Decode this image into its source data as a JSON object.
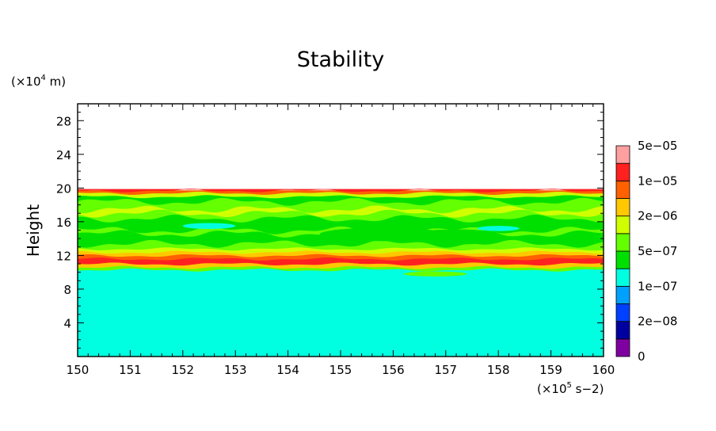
{
  "chart_data": {
    "type": "heatmap",
    "title": "Stability",
    "ylabel": "Height",
    "xlabel": "",
    "y_unit_label": {
      "prefix": "(×10",
      "exp": "4",
      "suffix": " m)"
    },
    "x_unit_label": {
      "prefix": "(×10",
      "exp": "5",
      "suffix": " s−2)"
    },
    "xlim": [
      150,
      160
    ],
    "ylim": [
      0,
      30
    ],
    "xticks": [
      "150",
      "151",
      "152",
      "153",
      "154",
      "155",
      "156",
      "157",
      "158",
      "159",
      "160"
    ],
    "yticks": [
      "4",
      "8",
      "12",
      "16",
      "20",
      "24",
      "28"
    ],
    "colorbar": {
      "colors": [
        "#7f00a0",
        "#0000a0",
        "#0040ff",
        "#00a0ff",
        "#00ffe0",
        "#00e000",
        "#64ff00",
        "#d0ff00",
        "#ffc800",
        "#ff6000",
        "#ff2020",
        "#ffa0a0"
      ],
      "labels": [
        "0",
        "2e−08",
        "1e−07",
        "5e−07",
        "2e−06",
        "1e−05",
        "5e−05"
      ]
    },
    "layers": [
      {
        "y": [
          0,
          9.6
        ],
        "color": "#00ffe0"
      },
      {
        "y": [
          9.6,
          10.3
        ],
        "color": "#00ffe0"
      },
      {
        "y": [
          10.3,
          10.6
        ],
        "color": "#64ff00"
      },
      {
        "y": [
          10.6,
          11.0
        ],
        "color": "#ffc800"
      },
      {
        "y": [
          11.0,
          11.6
        ],
        "color": "#ff2020"
      },
      {
        "y": [
          11.6,
          12.0
        ],
        "color": "#ff6000"
      },
      {
        "y": [
          12.0,
          12.4
        ],
        "color": "#ffc800"
      },
      {
        "y": [
          12.4,
          12.8
        ],
        "color": "#d0ff00"
      },
      {
        "y": [
          12.8,
          13.4
        ],
        "color": "#64ff00"
      },
      {
        "y": [
          13.4,
          14.6
        ],
        "color": "#00e000"
      },
      {
        "y": [
          14.6,
          15.0
        ],
        "color": "#64ff00"
      },
      {
        "y": [
          15.0,
          16.4
        ],
        "color": "#00e000"
      },
      {
        "y": [
          16.4,
          17.0
        ],
        "color": "#64ff00"
      },
      {
        "y": [
          17.0,
          17.5
        ],
        "color": "#d0ff00"
      },
      {
        "y": [
          17.5,
          18.4
        ],
        "color": "#64ff00"
      },
      {
        "y": [
          18.4,
          19.0
        ],
        "color": "#00e000"
      },
      {
        "y": [
          19.0,
          19.4
        ],
        "color": "#d0ff00"
      },
      {
        "y": [
          19.4,
          19.7
        ],
        "color": "#ff6000"
      },
      {
        "y": [
          19.7,
          19.85
        ],
        "color": "#ff2020"
      }
    ]
  }
}
